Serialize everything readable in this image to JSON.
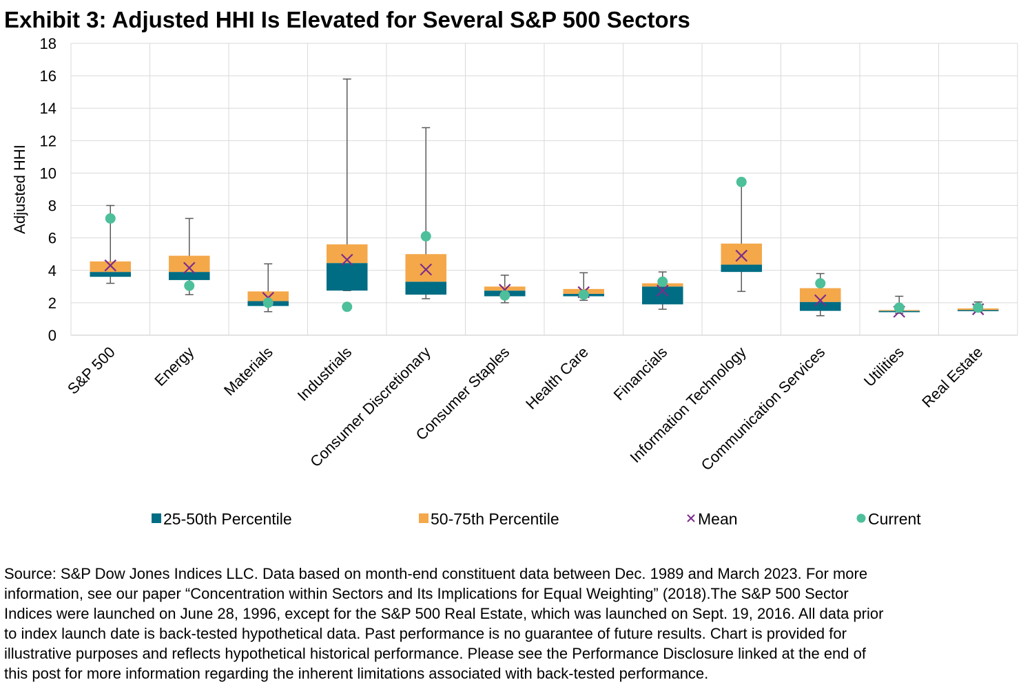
{
  "chart_data": {
    "type": "box",
    "title": "Exhibit 3: Adjusted HHI Is Elevated for Several S&P 500 Sectors",
    "ylabel": "Adjusted HHI",
    "categories": [
      "S&P 500",
      "Energy",
      "Materials",
      "Industrials",
      "Consumer Discretionary",
      "Consumer Staples",
      "Health Care",
      "Financials",
      "Information Technology",
      "Communication Services",
      "Utilities",
      "Real Estate"
    ],
    "min": [
      3.2,
      2.5,
      1.45,
      2.75,
      2.25,
      2.0,
      2.15,
      1.6,
      2.7,
      1.2,
      1.35,
      1.45
    ],
    "q1": [
      3.6,
      3.4,
      1.8,
      2.75,
      2.5,
      2.4,
      2.4,
      1.9,
      3.9,
      1.5,
      1.42,
      1.48
    ],
    "median": [
      3.9,
      3.9,
      2.1,
      4.45,
      3.3,
      2.75,
      2.55,
      3.0,
      4.35,
      2.05,
      1.5,
      1.55
    ],
    "q3": [
      4.55,
      4.9,
      2.7,
      5.6,
      5.0,
      3.0,
      2.85,
      3.2,
      5.65,
      2.9,
      1.55,
      1.65
    ],
    "max": [
      8.0,
      7.2,
      4.4,
      15.8,
      12.8,
      3.7,
      3.85,
      3.9,
      9.5,
      3.8,
      2.4,
      2.05
    ],
    "series": [
      {
        "name": "25-50th Percentile",
        "color": "#006d84"
      },
      {
        "name": "50-75th Percentile",
        "color": "#f4a84a"
      },
      {
        "name": "Mean",
        "color": "#7b2c8c",
        "marker": "x",
        "values": [
          4.3,
          4.15,
          2.3,
          4.65,
          4.05,
          2.8,
          2.65,
          2.75,
          4.9,
          2.15,
          1.45,
          1.6
        ]
      },
      {
        "name": "Current",
        "color": "#4dbf9b",
        "marker": "circle",
        "values": [
          7.2,
          3.05,
          2.0,
          1.75,
          6.1,
          2.45,
          2.5,
          3.3,
          9.45,
          3.2,
          1.7,
          1.7
        ]
      }
    ],
    "ylim": [
      0,
      18
    ],
    "yticks": [
      0,
      2,
      4,
      6,
      8,
      10,
      12,
      14,
      16,
      18
    ],
    "grid": true,
    "source": [
      "Source: S&P Dow Jones Indices LLC. Data based on month-end constituent data between Dec. 1989 and March 2023. For more",
      "information, see our paper “Concentration within Sectors and Its Implications for Equal Weighting” (2018).The S&P 500 Sector",
      "Indices were launched on June 28, 1996, except for the S&P 500 Real Estate, which was launched on Sept. 19, 2016. All data prior",
      "to index launch date is back-tested hypothetical data. Past performance is no guarantee of future results. Chart is provided for",
      "illustrative purposes and reflects hypothetical historical performance. Please see the Performance Disclosure linked at the end of",
      "this post for more information regarding the inherent limitations associated with back-tested performance."
    ]
  }
}
